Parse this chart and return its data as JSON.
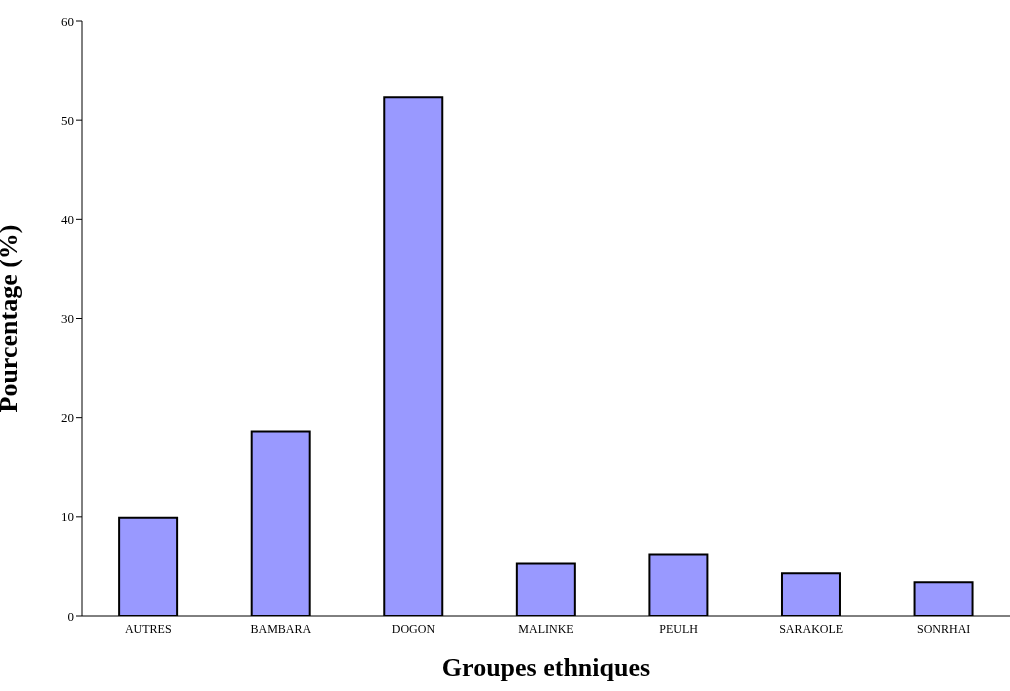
{
  "chart_data": {
    "type": "bar",
    "xlabel": "Groupes ethniques",
    "ylabel": "Pourcentage (%)",
    "categories": [
      "AUTRES",
      "BAMBARA",
      "DOGON",
      "MALINKE",
      "PEULH",
      "SARAKOLE",
      "SONRHAI"
    ],
    "values": [
      9.9,
      18.6,
      52.3,
      5.3,
      6.2,
      4.3,
      3.4
    ],
    "color": "#9999ff",
    "ylim": [
      0,
      60
    ],
    "yticks": [
      0,
      10,
      20,
      30,
      40,
      50,
      60
    ],
    "grid": false,
    "legend": false
  }
}
